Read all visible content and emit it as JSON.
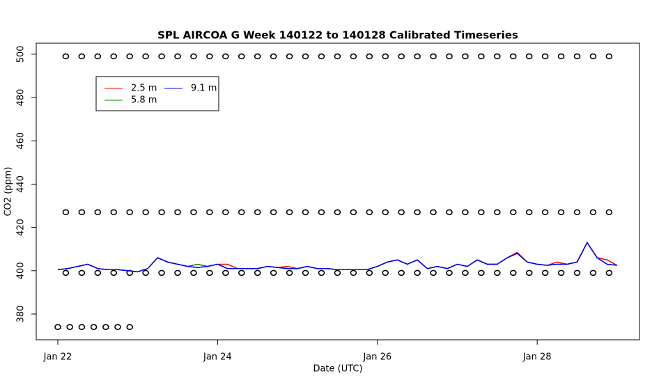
{
  "chart_data": {
    "type": "line",
    "title": "SPL AIRCOA G  Week 140122 to 140128  Calibrated Timeseries",
    "x_label": "Date (UTC)",
    "y_label": "CO2 (ppm)",
    "xlim": [
      21.73,
      29.28
    ],
    "ylim": [
      368.1,
      505.1
    ],
    "xticks": [
      {
        "value": 22,
        "label": "Jan 22"
      },
      {
        "value": 24,
        "label": "Jan 24"
      },
      {
        "value": 26,
        "label": "Jan 26"
      },
      {
        "value": 28,
        "label": "Jan 28"
      }
    ],
    "yticks": [
      380,
      400,
      420,
      440,
      460,
      480,
      500
    ],
    "legend": "topleft",
    "x": [
      22.0,
      22.125,
      22.25,
      22.375,
      22.5,
      22.625,
      22.75,
      22.875,
      23.0,
      23.125,
      23.25,
      23.375,
      23.5,
      23.625,
      23.75,
      23.875,
      24.0,
      24.125,
      24.25,
      24.375,
      24.5,
      24.625,
      24.75,
      24.875,
      25.0,
      25.125,
      25.25,
      25.375,
      25.5,
      25.625,
      25.75,
      25.875,
      26.0,
      26.125,
      26.25,
      26.375,
      26.5,
      26.625,
      26.75,
      26.875,
      27.0,
      27.125,
      27.25,
      27.375,
      27.5,
      27.625,
      27.75,
      27.875,
      28.0,
      28.125,
      28.25,
      28.375,
      28.5,
      28.625,
      28.75,
      28.875,
      29.0
    ],
    "series": [
      {
        "name": "2.5 m",
        "color": "#ff0000",
        "values": [
          400.5,
          401,
          402,
          403,
          401,
          400.5,
          400.5,
          400,
          399.5,
          401,
          406,
          404,
          403,
          402,
          401.5,
          402,
          403,
          403,
          401,
          401,
          401,
          402,
          401.5,
          402,
          401,
          402,
          401,
          401,
          400.5,
          400.5,
          400.5,
          400.5,
          402,
          404,
          405,
          403,
          405,
          401,
          402,
          401,
          403,
          402,
          405,
          403,
          403,
          406,
          408.5,
          404,
          403,
          402.5,
          404,
          403,
          404,
          413,
          406,
          405,
          402.5
        ]
      },
      {
        "name": "5.8 m",
        "color": "#008000",
        "values": [
          400.5,
          401,
          402,
          403,
          401,
          400.5,
          400.5,
          400,
          399.5,
          401,
          406,
          404,
          403,
          402,
          403,
          402,
          403,
          401,
          401,
          401,
          401,
          402,
          401.5,
          401,
          401,
          402,
          401,
          401,
          400.5,
          400.5,
          400.5,
          400.5,
          402,
          404,
          405,
          403,
          405,
          401,
          402,
          401,
          403,
          402,
          405,
          403,
          403,
          406,
          408,
          404,
          403,
          402.5,
          403,
          403,
          404,
          413,
          406,
          403,
          402.5
        ]
      },
      {
        "name": "9.1 m",
        "color": "#0000ff",
        "values": [
          400.5,
          401,
          402,
          403,
          401,
          400.5,
          400.5,
          400,
          399.5,
          401,
          406,
          404,
          403,
          402,
          401.5,
          402,
          403,
          401,
          401,
          401,
          401,
          402,
          401.5,
          401,
          401,
          402,
          401,
          401,
          400.5,
          400.5,
          400.5,
          400.5,
          402,
          404,
          405,
          403,
          405,
          401,
          402,
          401,
          403,
          402,
          405,
          403,
          403,
          406,
          408,
          404,
          403,
          402.5,
          403,
          403,
          404,
          413,
          406,
          403,
          402.5
        ]
      }
    ],
    "points": [
      {
        "color": "#000000",
        "x": [
          22.1,
          22.3,
          22.5,
          22.7,
          22.9,
          23.1,
          23.3,
          23.5,
          23.7,
          23.9,
          24.1,
          24.3,
          24.5,
          24.7,
          24.9,
          25.1,
          25.3,
          25.5,
          25.7,
          25.9,
          26.1,
          26.3,
          26.5,
          26.7,
          26.9,
          27.1,
          27.3,
          27.5,
          27.7,
          27.9,
          28.1,
          28.3,
          28.5,
          28.7,
          28.9
        ],
        "values": [
          499,
          499,
          499,
          499,
          499,
          499,
          499,
          499,
          499,
          499,
          499,
          499,
          499,
          499,
          499,
          499,
          499,
          499,
          499,
          499,
          499,
          499,
          499,
          499,
          499,
          499,
          499,
          499,
          499,
          499,
          499,
          499,
          499,
          499,
          499
        ]
      },
      {
        "color": "#000000",
        "x": [
          22.1,
          22.3,
          22.5,
          22.7,
          22.9,
          23.1,
          23.3,
          23.5,
          23.7,
          23.9,
          24.1,
          24.3,
          24.5,
          24.7,
          24.9,
          25.1,
          25.3,
          25.5,
          25.7,
          25.9,
          26.1,
          26.3,
          26.5,
          26.7,
          26.9,
          27.1,
          27.3,
          27.5,
          27.7,
          27.9,
          28.1,
          28.3,
          28.5,
          28.7,
          28.9
        ],
        "values": [
          427,
          427,
          427,
          427,
          427,
          427,
          427,
          427,
          427,
          427,
          427,
          427,
          427,
          427,
          427,
          427,
          427,
          427,
          427,
          427,
          427,
          427,
          427,
          427,
          427,
          427,
          427,
          427,
          427,
          427,
          427,
          427,
          427,
          427,
          427
        ]
      },
      {
        "color": "#000000",
        "x": [
          22.1,
          22.3,
          22.5,
          22.7,
          22.9,
          23.1,
          23.3,
          23.5,
          23.7,
          23.9,
          24.1,
          24.3,
          24.5,
          24.7,
          24.9,
          25.1,
          25.3,
          25.5,
          25.7,
          25.9,
          26.1,
          26.3,
          26.5,
          26.7,
          26.9,
          27.1,
          27.3,
          27.5,
          27.7,
          27.9,
          28.1,
          28.3,
          28.5,
          28.7,
          28.9
        ],
        "values": [
          399,
          399,
          399,
          399,
          399,
          399,
          399,
          399,
          399,
          399,
          399,
          399,
          399,
          399,
          399,
          399,
          399,
          399,
          399,
          399,
          399,
          399,
          399,
          399,
          399,
          399,
          399,
          399,
          399,
          399,
          399,
          399,
          399,
          399,
          399
        ]
      },
      {
        "color": "#000000",
        "x": [
          22.0,
          22.15,
          22.3,
          22.45,
          22.6,
          22.75,
          22.9
        ],
        "values": [
          374,
          374,
          374,
          374,
          374,
          374,
          374
        ]
      }
    ]
  }
}
